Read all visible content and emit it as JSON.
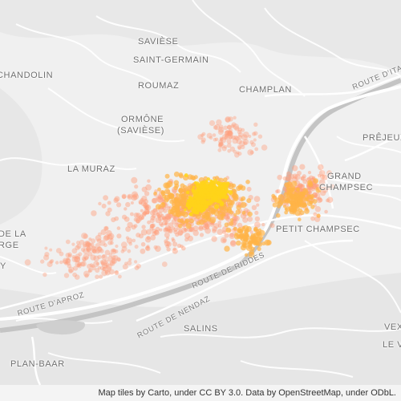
{
  "map": {
    "colors": {
      "background": "#f0f0f0",
      "terrain": "#e3e3e3",
      "road": "#ffffff",
      "river": "#c9c9c9",
      "points_outer": "#ff9e7a",
      "points_mid": "#ffb347",
      "points_core": "#ffd31a"
    },
    "places": [
      {
        "name": "Savièse"
      },
      {
        "name": "Saint-Germain"
      },
      {
        "name": "Roumaz"
      },
      {
        "name": "Chandolin"
      },
      {
        "name": "Champlan"
      },
      {
        "name": "Ormône"
      },
      {
        "name": "(Savièse)"
      },
      {
        "name": "La Muraz"
      },
      {
        "name": "Grand"
      },
      {
        "name": "Champsec"
      },
      {
        "name": "Prêjeux"
      },
      {
        "name": "Petit Champsec"
      },
      {
        "name": "de la"
      },
      {
        "name": "rge"
      },
      {
        "name": "y"
      },
      {
        "name": "Salins"
      },
      {
        "name": "Plan-Baar"
      },
      {
        "name": "Vex"
      },
      {
        "name": "Le V"
      }
    ],
    "roads": [
      {
        "name": "Route d'Aproz"
      },
      {
        "name": "Route de Nendaz"
      },
      {
        "name": "Route de Riddes"
      },
      {
        "name": "Route d'Ita"
      }
    ],
    "attribution": "Map tiles by Carto, under CC BY 3.0. Data by OpenStreetMap, under ODbL."
  }
}
